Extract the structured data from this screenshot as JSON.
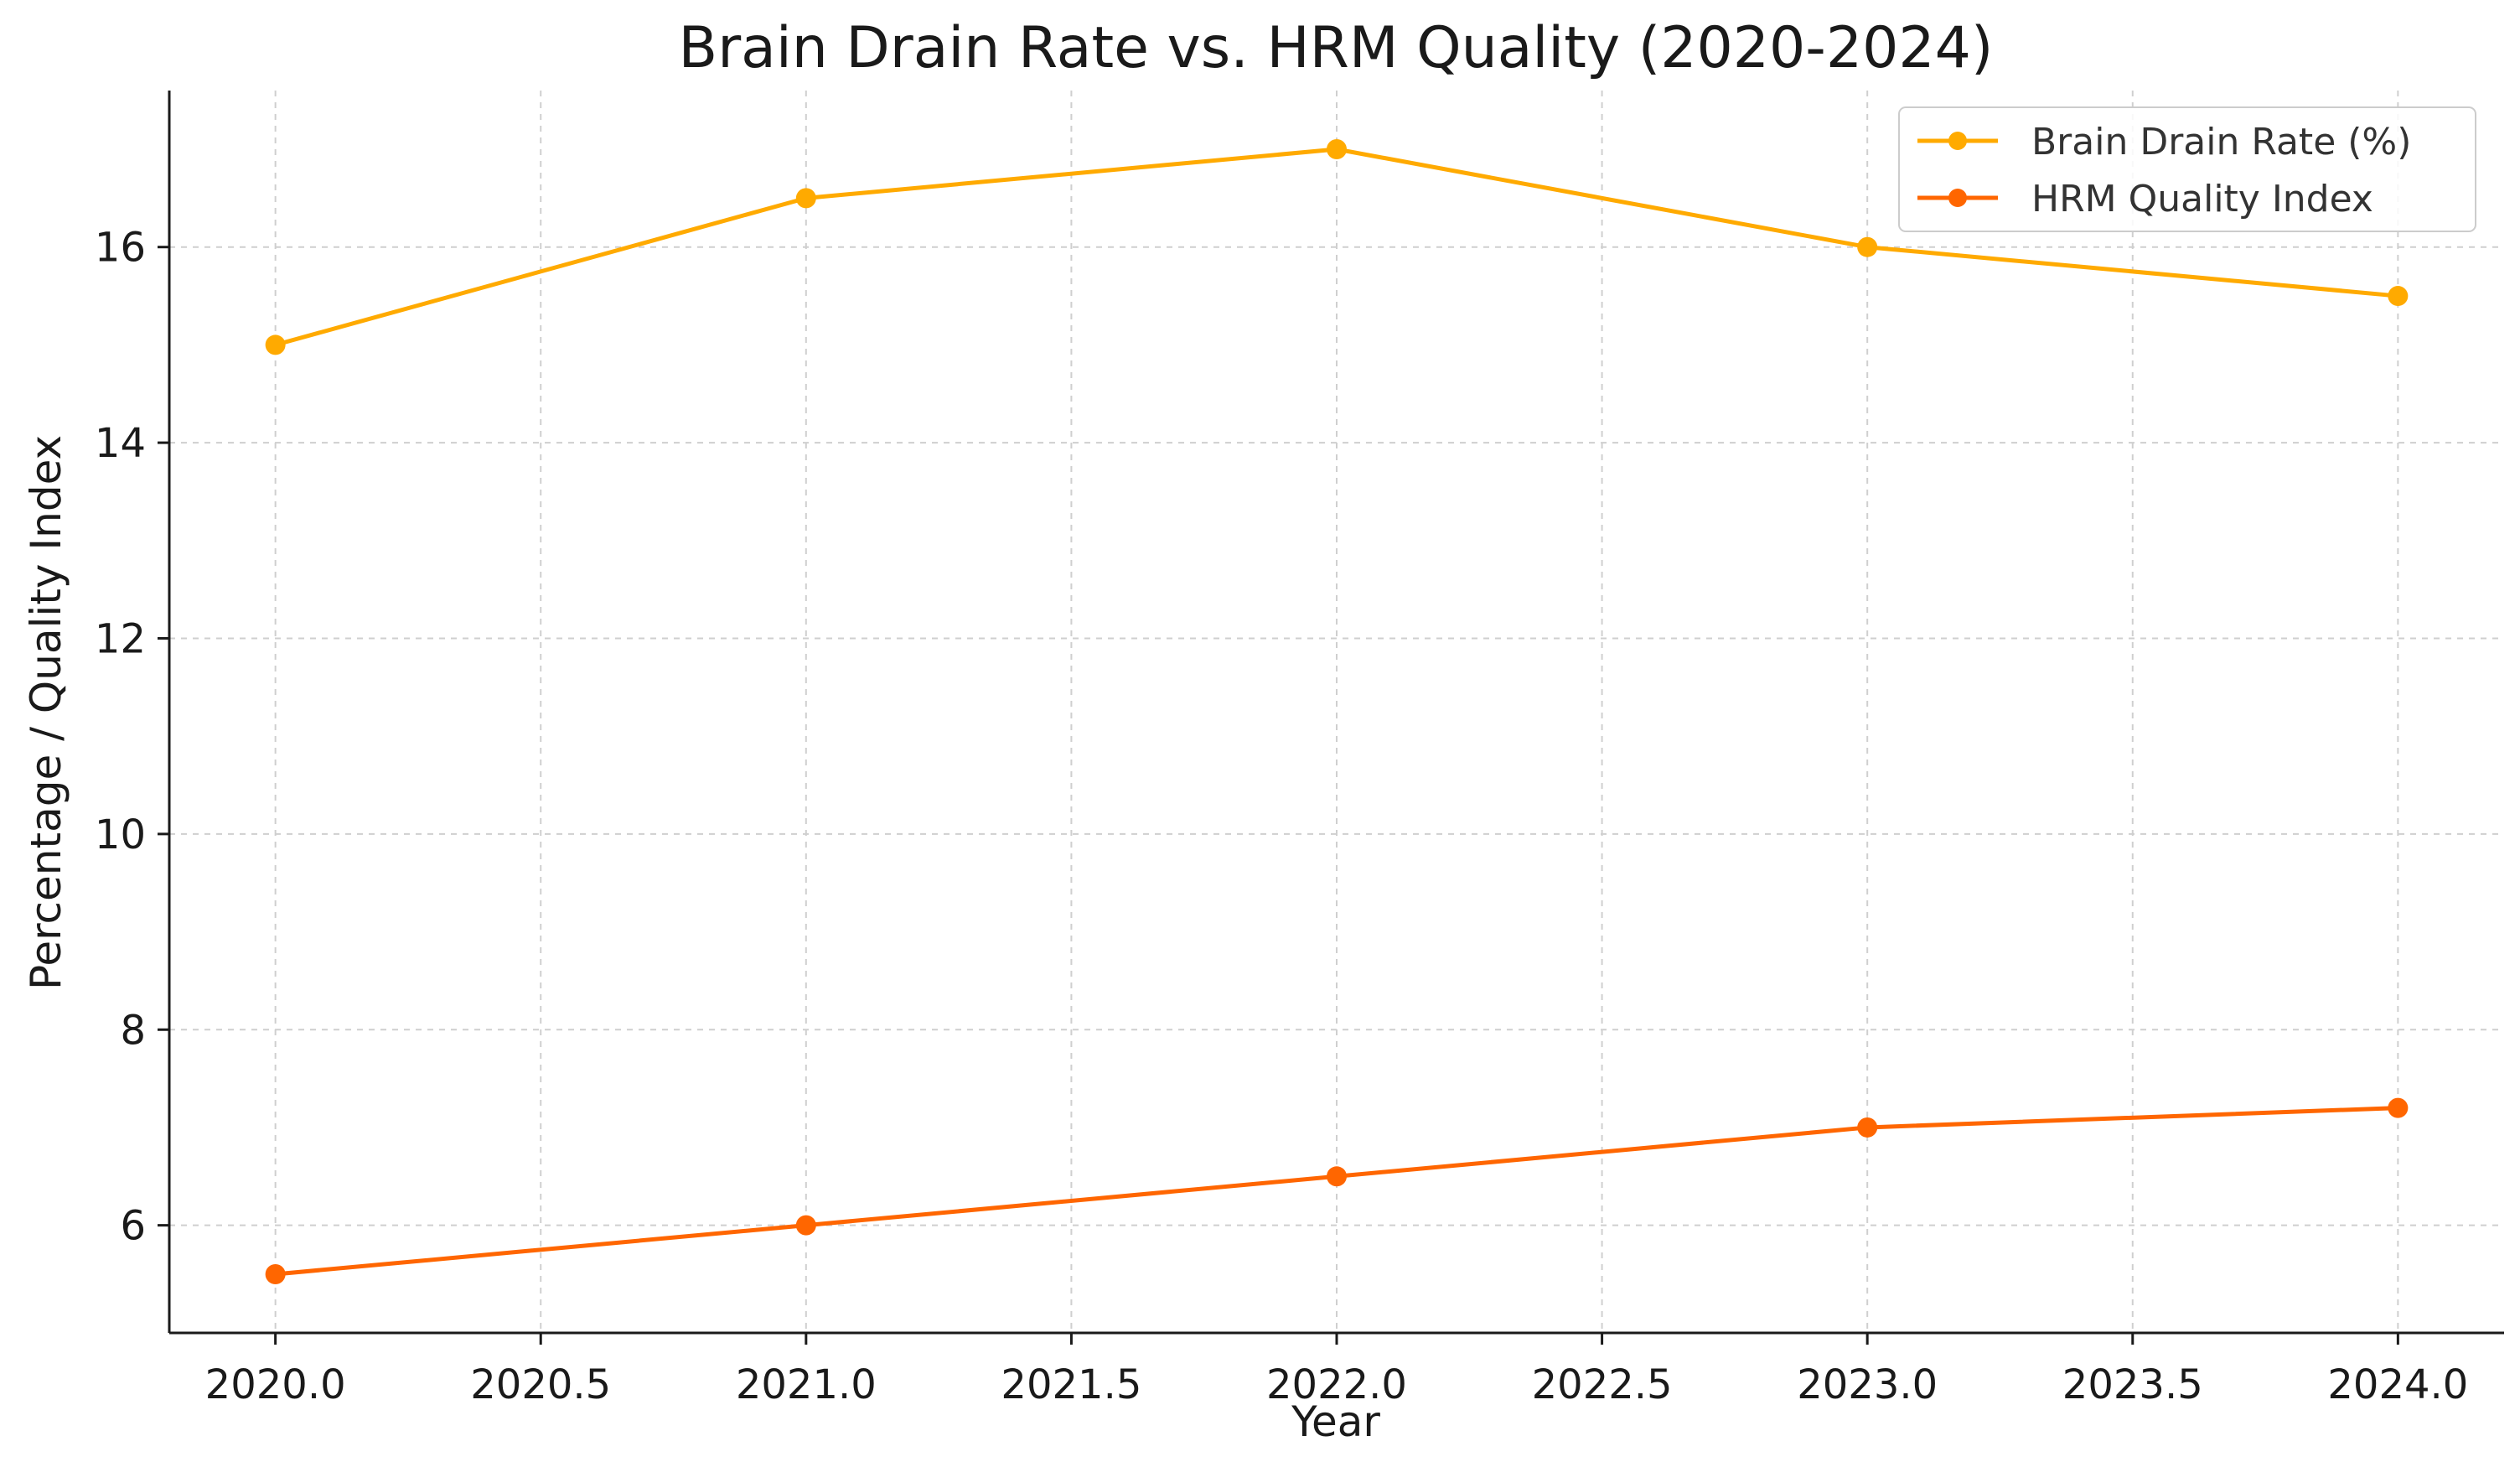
{
  "chart_data": {
    "type": "line",
    "title": "Brain Drain Rate vs. HRM Quality (2020-2024)",
    "xlabel": "Year",
    "ylabel": "Percentage / Quality Index",
    "x": [
      2020,
      2021,
      2022,
      2023,
      2024
    ],
    "xlim": [
      2019.8,
      2024.2
    ],
    "ylim": [
      4.9,
      17.6
    ],
    "x_ticks": [
      "2020.0",
      "2020.5",
      "2021.0",
      "2021.5",
      "2022.0",
      "2022.5",
      "2023.0",
      "2023.5",
      "2024.0"
    ],
    "x_tick_values": [
      2020.0,
      2020.5,
      2021.0,
      2021.5,
      2022.0,
      2022.5,
      2023.0,
      2023.5,
      2024.0
    ],
    "y_ticks": [
      "6",
      "8",
      "10",
      "12",
      "14",
      "16"
    ],
    "y_tick_values": [
      6,
      8,
      10,
      12,
      14,
      16
    ],
    "grid": true,
    "legend_position": "top-right",
    "series": [
      {
        "name": "Brain Drain Rate (%)",
        "values": [
          15.0,
          16.5,
          17.0,
          16.0,
          15.5
        ],
        "color": "#FFAA00",
        "marker": "circle"
      },
      {
        "name": "HRM Quality Index",
        "values": [
          5.5,
          6.0,
          6.5,
          7.0,
          7.2
        ],
        "color": "#FF6600",
        "marker": "circle"
      }
    ]
  }
}
